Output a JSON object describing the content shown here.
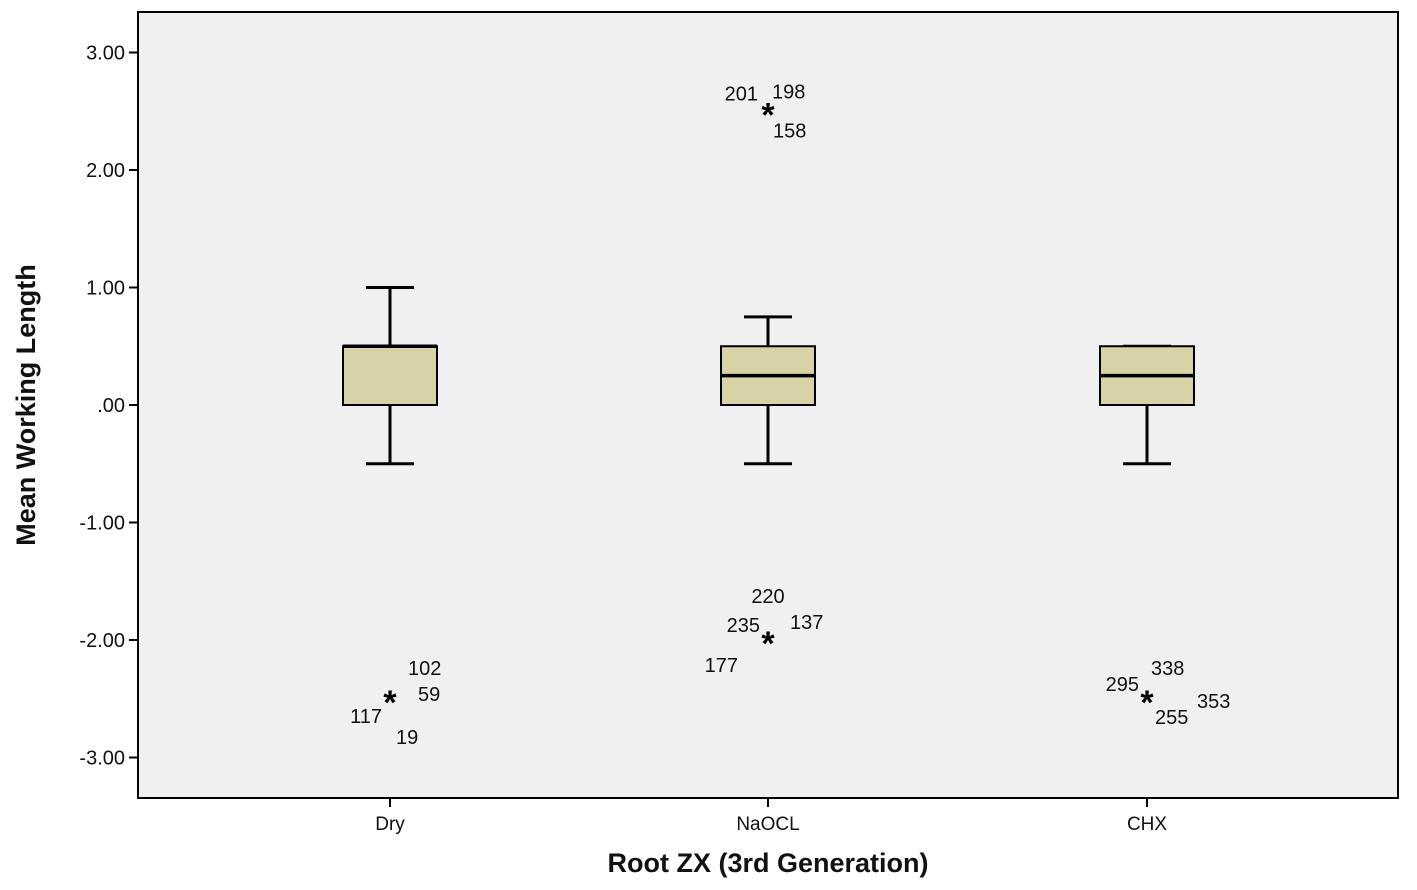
{
  "chart_data": {
    "type": "boxplot",
    "xlabel": "Root ZX (3rd Generation)",
    "ylabel": "Mean Working Length",
    "ylim": [
      -3.3,
      3.3
    ],
    "yticks": [
      {
        "value": 3,
        "label": "3.00"
      },
      {
        "value": 2,
        "label": "2.00"
      },
      {
        "value": 1,
        "label": "1.00"
      },
      {
        "value": 0,
        "label": ".00"
      },
      {
        "value": -1,
        "label": "-1.00"
      },
      {
        "value": -2,
        "label": "-2.00"
      },
      {
        "value": -3,
        "label": "-3.00"
      }
    ],
    "grid": false,
    "legend": "none",
    "colors": {
      "plot_background": "#f0f0f0",
      "box_fill": "#d8d3a6",
      "stroke": "#000000"
    },
    "categories": [
      "Dry",
      "NaOCL",
      "CHX"
    ],
    "boxes": [
      {
        "category": "Dry",
        "whisker_low": -0.5,
        "q1": 0.0,
        "median": 0.5,
        "q3": 0.5,
        "whisker_high": 1.0,
        "extremes": [
          {
            "value": -2.5,
            "case_ids": [
              "102",
              "59",
              "117",
              "19"
            ]
          }
        ]
      },
      {
        "category": "NaOCL",
        "whisker_low": -0.5,
        "q1": 0.0,
        "median": 0.25,
        "q3": 0.5,
        "whisker_high": 0.75,
        "extremes": [
          {
            "value": 2.5,
            "case_ids": [
              "201",
              "198",
              "158"
            ]
          },
          {
            "value": -2.0,
            "case_ids": [
              "220",
              "235",
              "137",
              "177"
            ]
          }
        ]
      },
      {
        "category": "CHX",
        "whisker_low": -0.5,
        "q1": 0.0,
        "median": 0.25,
        "q3": 0.5,
        "whisker_high": 0.5,
        "extremes": [
          {
            "value": -2.5,
            "case_ids": [
              "295",
              "338",
              "353",
              "255"
            ]
          }
        ]
      }
    ]
  }
}
